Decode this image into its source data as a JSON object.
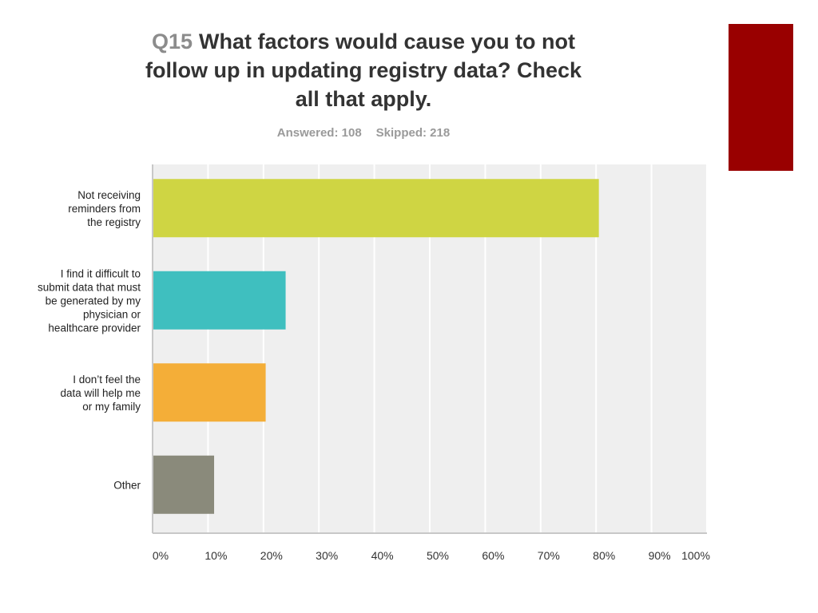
{
  "question": {
    "number": "Q15",
    "text_lines": [
      "What factors would cause you to not",
      "follow up in updating registry data? Check",
      "all that apply."
    ]
  },
  "stats": {
    "answered": "Answered: 108",
    "skipped": "Skipped: 218"
  },
  "colors": {
    "accent": "#990000",
    "plot_bg": "#efefef",
    "grid": "#ffffff",
    "axis": "#c8c8c8"
  },
  "chart_data": {
    "type": "bar",
    "orientation": "horizontal",
    "title": "",
    "xlabel": "",
    "ylabel": "",
    "xlim": [
      0,
      100
    ],
    "grid": true,
    "categories": [
      "Not receiving reminders from the registry",
      "I find it difficult to submit data that must be generated by my physician or healthcare provider",
      "I don't feel the data will help me or my family",
      "Other"
    ],
    "category_label_lines": [
      [
        "Not receiving",
        "reminders from",
        "the registry"
      ],
      [
        "I find it difficult to",
        "submit data that must",
        "be generated by my",
        "physician or",
        "healthcare provider"
      ],
      [
        "I don’t feel the",
        "data will help me",
        "or my family"
      ],
      [
        "Other"
      ]
    ],
    "values": [
      80.5,
      24.0,
      20.4,
      11.1
    ],
    "bar_colors": [
      "#cfd543",
      "#3fbfbf",
      "#f4ae38",
      "#8a8a7b"
    ],
    "ticks": [
      "0%",
      "10%",
      "20%",
      "30%",
      "40%",
      "50%",
      "60%",
      "70%",
      "80%",
      "90%",
      "100%"
    ]
  }
}
